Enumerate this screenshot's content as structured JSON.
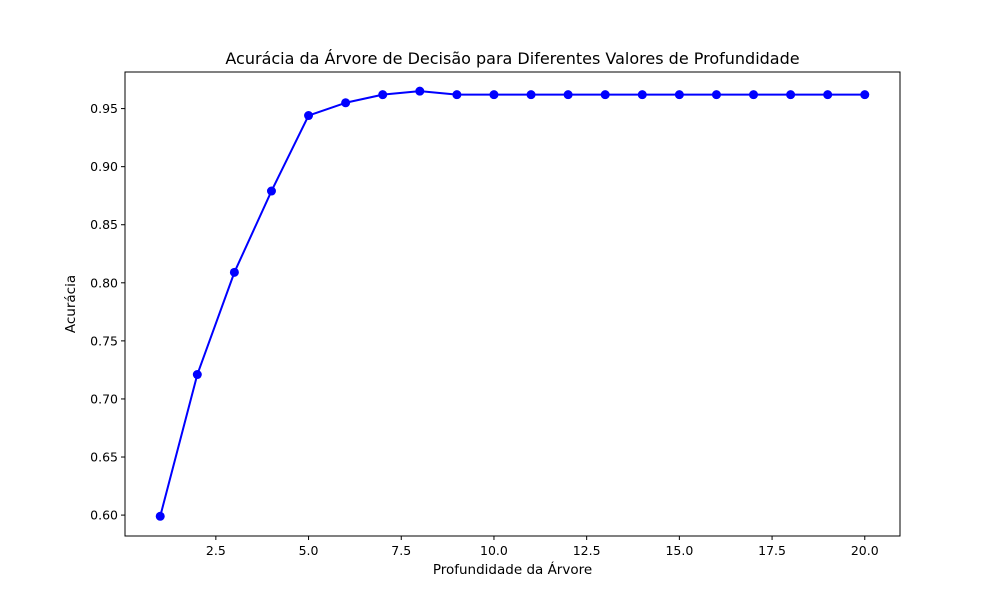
{
  "chart_data": {
    "type": "line",
    "title": "Acurácia da Árvore de Decisão para Diferentes Valores de Profundidade",
    "xlabel": "Profundidade da Árvore",
    "ylabel": "Acurácia",
    "xlim": [
      0.05,
      20.95
    ],
    "ylim": [
      0.582,
      0.9815
    ],
    "grid": false,
    "color": "#0000ff",
    "marker": "circle",
    "xticks": [
      2.5,
      5.0,
      7.5,
      10.0,
      12.5,
      15.0,
      17.5,
      20.0
    ],
    "xtick_labels": [
      "2.5",
      "5.0",
      "7.5",
      "10.0",
      "12.5",
      "15.0",
      "17.5",
      "20.0"
    ],
    "yticks": [
      0.6,
      0.65,
      0.7,
      0.75,
      0.8,
      0.85,
      0.9,
      0.95
    ],
    "ytick_labels": [
      "0.60",
      "0.65",
      "0.70",
      "0.75",
      "0.80",
      "0.85",
      "0.90",
      "0.95"
    ],
    "x": [
      1,
      2,
      3,
      4,
      5,
      6,
      7,
      8,
      9,
      10,
      11,
      12,
      13,
      14,
      15,
      16,
      17,
      18,
      19,
      20
    ],
    "y": [
      0.599,
      0.721,
      0.809,
      0.879,
      0.944,
      0.955,
      0.962,
      0.965,
      0.962,
      0.962,
      0.962,
      0.962,
      0.962,
      0.962,
      0.962,
      0.962,
      0.962,
      0.962,
      0.962,
      0.962
    ]
  }
}
